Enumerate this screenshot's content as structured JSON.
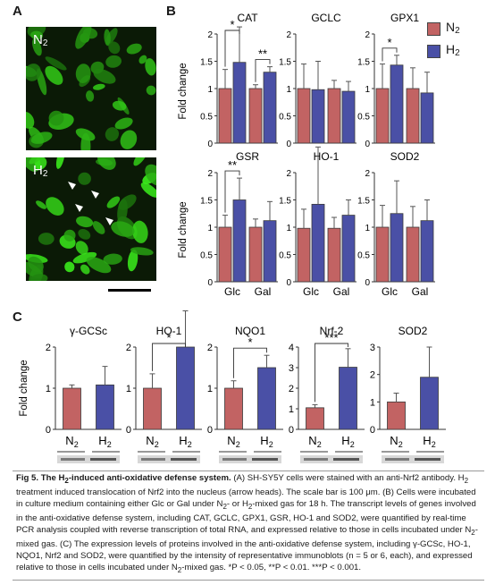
{
  "panel_labels": {
    "a": "A",
    "b": "B",
    "c": "C"
  },
  "micrographs": [
    {
      "label": "N",
      "label_sub": "2"
    },
    {
      "label": "H",
      "label_sub": "2"
    }
  ],
  "legend": [
    {
      "name": "N",
      "sub": "2",
      "color": "#c26363"
    },
    {
      "name": "H",
      "sub": "2",
      "color": "#4a50a6"
    }
  ],
  "colors": {
    "n2": "#c26363",
    "h2": "#4a50a6",
    "error": "#555555"
  },
  "panel_b_ylabel": "Fold change",
  "panel_c_ylabel": "Fold change",
  "chart_data": [
    {
      "panel": "B",
      "type": "bar",
      "title": "CAT",
      "categories": [
        "Glc",
        "Gal"
      ],
      "ylim": [
        0,
        2
      ],
      "yticks": [
        "0",
        "0.5",
        "1",
        "1.5",
        "2"
      ],
      "series": [
        {
          "name": "N2",
          "values": [
            1.0,
            1.0
          ],
          "errors": [
            0.35,
            0.07
          ]
        },
        {
          "name": "H2",
          "values": [
            1.48,
            1.3
          ],
          "errors": [
            0.65,
            0.1
          ]
        }
      ],
      "significance": [
        {
          "group": 0,
          "label": "*"
        },
        {
          "group": 1,
          "label": "**"
        }
      ]
    },
    {
      "panel": "B",
      "type": "bar",
      "title": "GCLC",
      "categories": [
        "Glc",
        "Gal"
      ],
      "ylim": [
        0,
        2
      ],
      "yticks": [
        "0",
        "0.5",
        "1",
        "1.5",
        "2"
      ],
      "series": [
        {
          "name": "N2",
          "values": [
            1.0,
            1.0
          ],
          "errors": [
            0.45,
            0.15
          ]
        },
        {
          "name": "H2",
          "values": [
            0.98,
            0.95
          ],
          "errors": [
            0.52,
            0.18
          ]
        }
      ],
      "significance": []
    },
    {
      "panel": "B",
      "type": "bar",
      "title": "GPX1",
      "categories": [
        "Glc",
        "Gal"
      ],
      "ylim": [
        0,
        2
      ],
      "yticks": [
        "0",
        "0.5",
        "1",
        "1.5",
        "2"
      ],
      "series": [
        {
          "name": "N2",
          "values": [
            1.0,
            1.0
          ],
          "errors": [
            0.45,
            0.38
          ]
        },
        {
          "name": "H2",
          "values": [
            1.43,
            0.92
          ],
          "errors": [
            0.18,
            0.38
          ]
        }
      ],
      "significance": [
        {
          "group": 0,
          "label": "*"
        }
      ]
    },
    {
      "panel": "B",
      "type": "bar",
      "title": "GSR",
      "categories": [
        "Glc",
        "Gal"
      ],
      "ylim": [
        0,
        2
      ],
      "yticks": [
        "0",
        "0.5",
        "1",
        "1.5",
        "2"
      ],
      "series": [
        {
          "name": "N2",
          "values": [
            1.0,
            1.0
          ],
          "errors": [
            0.22,
            0.15
          ]
        },
        {
          "name": "H2",
          "values": [
            1.5,
            1.12
          ],
          "errors": [
            0.4,
            0.35
          ]
        }
      ],
      "significance": [
        {
          "group": 0,
          "label": "**"
        }
      ]
    },
    {
      "panel": "B",
      "type": "bar",
      "title": "HO-1",
      "categories": [
        "Glc",
        "Gal"
      ],
      "ylim": [
        0,
        2
      ],
      "yticks": [
        "0",
        "0.5",
        "1",
        "1.5",
        "2"
      ],
      "series": [
        {
          "name": "N2",
          "values": [
            0.98,
            0.98
          ],
          "errors": [
            0.35,
            0.2
          ]
        },
        {
          "name": "H2",
          "values": [
            1.42,
            1.22
          ],
          "errors": [
            1.05,
            0.28
          ]
        }
      ],
      "significance": []
    },
    {
      "panel": "B",
      "type": "bar",
      "title": "SOD2",
      "categories": [
        "Glc",
        "Gal"
      ],
      "ylim": [
        0,
        2
      ],
      "yticks": [
        "0",
        "0.5",
        "1",
        "1.5",
        "2"
      ],
      "series": [
        {
          "name": "N2",
          "values": [
            1.0,
            1.0
          ],
          "errors": [
            0.4,
            0.38
          ]
        },
        {
          "name": "H2",
          "values": [
            1.25,
            1.12
          ],
          "errors": [
            0.6,
            0.38
          ]
        }
      ],
      "significance": []
    },
    {
      "panel": "C",
      "type": "bar",
      "title": "γ-GCSc",
      "categories": [
        "N2",
        "H2"
      ],
      "ylim": [
        0,
        2
      ],
      "yticks": [
        "0",
        "1",
        "2"
      ],
      "values": [
        1.0,
        1.08
      ],
      "errors": [
        0.08,
        0.45
      ],
      "significance": []
    },
    {
      "panel": "C",
      "type": "bar",
      "title": "HO-1",
      "categories": [
        "N2",
        "H2"
      ],
      "ylim": [
        0,
        2
      ],
      "yticks": [
        "0",
        "1",
        "2"
      ],
      "values": [
        1.0,
        2.0
      ],
      "errors": [
        0.35,
        0.88
      ],
      "significance": [
        {
          "label": "*"
        }
      ]
    },
    {
      "panel": "C",
      "type": "bar",
      "title": "NQO1",
      "categories": [
        "N2",
        "H2"
      ],
      "ylim": [
        0,
        2
      ],
      "yticks": [
        "0",
        "1",
        "2"
      ],
      "values": [
        1.0,
        1.5
      ],
      "errors": [
        0.18,
        0.3
      ],
      "significance": [
        {
          "label": "*"
        }
      ]
    },
    {
      "panel": "C",
      "type": "bar",
      "title": "Nrf-2",
      "categories": [
        "N2",
        "H2"
      ],
      "ylim": [
        0,
        4
      ],
      "yticks": [
        "0",
        "1",
        "2",
        "3",
        "4"
      ],
      "values": [
        1.05,
        3.02
      ],
      "errors": [
        0.15,
        0.9
      ],
      "significance": [
        {
          "label": "***"
        }
      ]
    },
    {
      "panel": "C",
      "type": "bar",
      "title": "SOD2",
      "categories": [
        "N2",
        "H2"
      ],
      "ylim": [
        0,
        3
      ],
      "yticks": [
        "0",
        "1",
        "2",
        "3"
      ],
      "values": [
        1.0,
        1.9
      ],
      "errors": [
        0.32,
        1.1
      ],
      "significance": []
    }
  ],
  "caption": {
    "fig_label": "Fig 5.",
    "title_pre": "The H",
    "title_sub": "2",
    "title_post": "-induced anti-oxidative defense system.",
    "s1": " (A) SH-SY5Y cells were stained with an anti-Nrf2 antibody. H",
    "s1_sub": "2",
    "s2": " treatment induced translocation of Nrf2 into the nucleus (arrow heads). The scale bar is 100 μm. (B) Cells were incubated in culture medium containing either Glc or Gal under N",
    "s2_sub": "2",
    "s3": "- or H",
    "s3_sub": "2",
    "s4": "-mixed gas for 18 h. The transcript levels of genes involved in the anti-oxidative defense system, including CAT, GCLC, GPX1, GSR, HO-1 and SOD2, were quantified by real-time PCR analysis coupled with reverse transcription of total RNA, and expressed relative to those in cells incubated under N",
    "s4_sub": "2",
    "s5": "-mixed gas. (C) The expression levels of proteins involved in the anti-oxidative defense system, including γ-GCSc, HO-1, NQO1, Nrf2 and SOD2, were quantified by the intensity of representative immunoblots (n = 5 or 6, each), and expressed relative to those in cells incubated under N",
    "s5_sub": "2",
    "s6": "-mixed gas. *P < 0.05, **P < 0.01. ***P < 0.001."
  }
}
